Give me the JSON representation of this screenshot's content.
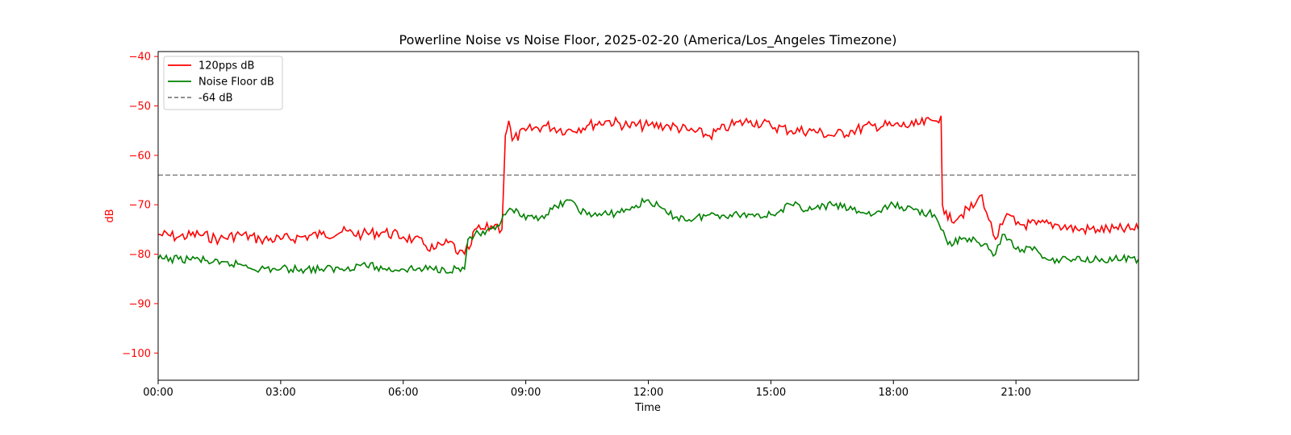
{
  "chart_data": {
    "type": "line",
    "title": "Powerline Noise vs Noise Floor, 2025-02-20 (America/Los_Angeles Timezone)",
    "xlabel": "Time",
    "ylabel": "dB",
    "xlim": [
      "00:00",
      "24:00"
    ],
    "ylim": [
      -105.5,
      -39
    ],
    "x_ticks": [
      "00:00",
      "03:00",
      "06:00",
      "09:00",
      "12:00",
      "15:00",
      "18:00",
      "21:00"
    ],
    "y_ticks": [
      -40,
      -50,
      -60,
      -70,
      -80,
      -90,
      -100
    ],
    "y_tick_labels": [
      "−40",
      "−50",
      "−60",
      "−70",
      "−80",
      "−90",
      "−100"
    ],
    "grid": false,
    "legend_position": "top-left",
    "threshold": {
      "name": "-64 dB",
      "value": -64,
      "color": "#808080",
      "style": "dashed"
    },
    "colors": {
      "axis_label": "#ff0000",
      "noise": "#ff0000",
      "floor": "#008000"
    },
    "series": [
      {
        "name": "120pps dB",
        "color": "#ff0000",
        "x": [
          "00:00",
          "00:30",
          "01:00",
          "01:30",
          "02:00",
          "02:30",
          "03:00",
          "03:30",
          "04:00",
          "04:30",
          "05:00",
          "05:30",
          "06:00",
          "06:15",
          "06:30",
          "06:45",
          "07:00",
          "07:15",
          "07:20",
          "07:30",
          "07:40",
          "07:45",
          "08:00",
          "08:15",
          "08:25",
          "08:30",
          "08:35",
          "08:40",
          "09:00",
          "09:30",
          "10:00",
          "10:30",
          "11:00",
          "11:30",
          "12:00",
          "12:30",
          "13:00",
          "13:30",
          "14:00",
          "14:30",
          "15:00",
          "15:30",
          "16:00",
          "16:30",
          "17:00",
          "17:30",
          "18:00",
          "18:30",
          "19:00",
          "19:10",
          "19:12",
          "19:20",
          "19:40",
          "20:00",
          "20:10",
          "20:20",
          "20:30",
          "20:40",
          "20:50",
          "21:00",
          "21:30",
          "22:00",
          "22:30",
          "23:00",
          "23:30",
          "24:00"
        ],
        "y": [
          -76,
          -76.5,
          -76,
          -77,
          -76,
          -77,
          -77,
          -76.5,
          -76,
          -75.5,
          -76,
          -75.5,
          -76.5,
          -77,
          -78,
          -79,
          -78,
          -78,
          -80,
          -80,
          -78,
          -75,
          -75,
          -74,
          -75,
          -56,
          -53,
          -57,
          -55,
          -54,
          -55,
          -54,
          -53,
          -54,
          -54,
          -54,
          -55,
          -56,
          -54,
          -53,
          -54,
          -55,
          -55,
          -56,
          -55,
          -54,
          -54,
          -54,
          -53,
          -52,
          -70,
          -73,
          -72,
          -70,
          -68,
          -73,
          -77,
          -74,
          -72,
          -74,
          -74,
          -74,
          -75,
          -75,
          -75,
          -75
        ]
      },
      {
        "name": "Noise Floor dB",
        "color": "#008000",
        "x": [
          "00:00",
          "00:30",
          "01:00",
          "01:30",
          "02:00",
          "02:30",
          "03:00",
          "03:30",
          "04:00",
          "04:30",
          "05:00",
          "05:30",
          "06:00",
          "06:30",
          "07:00",
          "07:30",
          "07:35",
          "07:45",
          "08:00",
          "08:15",
          "08:30",
          "08:40",
          "09:00",
          "09:30",
          "10:00",
          "10:30",
          "11:00",
          "11:30",
          "12:00",
          "12:30",
          "13:00",
          "13:30",
          "14:00",
          "14:30",
          "15:00",
          "15:30",
          "16:00",
          "16:30",
          "17:00",
          "17:30",
          "18:00",
          "18:30",
          "19:00",
          "19:10",
          "19:20",
          "19:40",
          "20:00",
          "20:20",
          "20:30",
          "20:40",
          "20:50",
          "21:00",
          "21:30",
          "21:45",
          "22:00",
          "23:00",
          "24:00"
        ],
        "y": [
          -81,
          -81,
          -81,
          -82,
          -82,
          -83,
          -83,
          -83,
          -83,
          -83,
          -82,
          -83,
          -83,
          -83,
          -83,
          -83,
          -77,
          -76,
          -76,
          -75,
          -72,
          -71,
          -73,
          -72,
          -69,
          -72,
          -72,
          -71,
          -69,
          -72,
          -73,
          -72,
          -72,
          -72,
          -72,
          -70,
          -71,
          -70,
          -71,
          -72,
          -70,
          -71,
          -72,
          -75,
          -78,
          -77,
          -77,
          -79,
          -80,
          -76,
          -77,
          -79,
          -79,
          -81,
          -81,
          -81,
          -81
        ]
      }
    ]
  }
}
